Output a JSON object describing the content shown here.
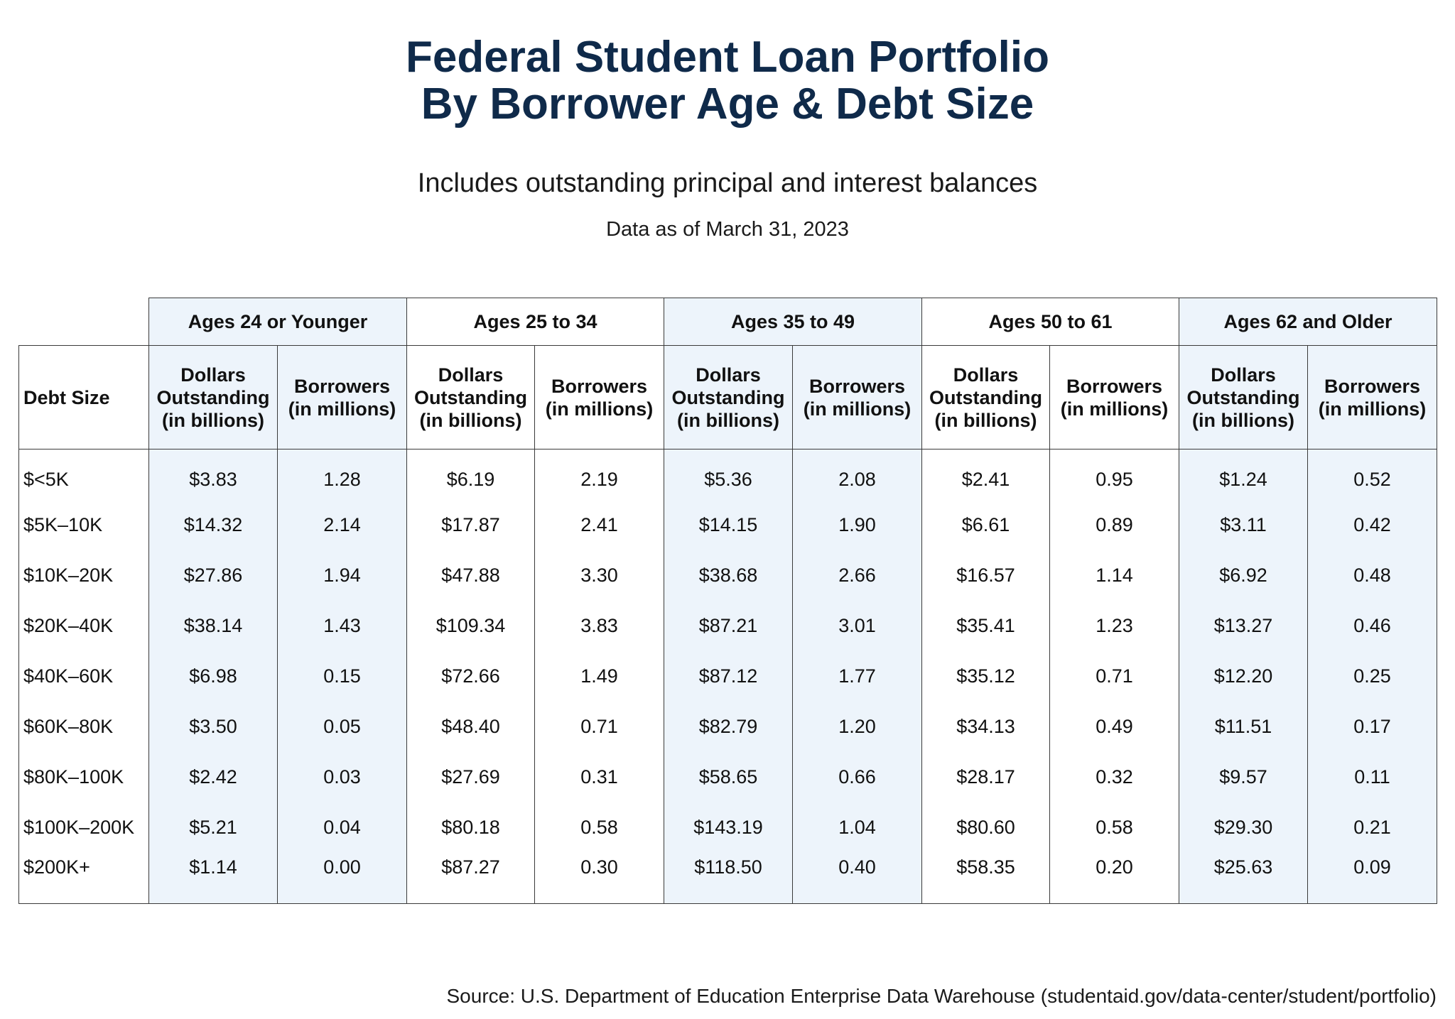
{
  "header": {
    "title_line1": "Federal Student Loan Portfolio",
    "title_line2": "By Borrower Age & Debt Size",
    "subtitle": "Includes outstanding principal and interest balances",
    "date": "Data as of March 31, 2023"
  },
  "table": {
    "row_header_label": "Debt Size",
    "age_groups": [
      {
        "label": "Ages 24 or Younger",
        "shaded": true
      },
      {
        "label": "Ages 25 to 34",
        "shaded": false
      },
      {
        "label": "Ages 35 to 49",
        "shaded": true
      },
      {
        "label": "Ages 50 to 61",
        "shaded": false
      },
      {
        "label": "Ages 62 and Older",
        "shaded": true
      }
    ],
    "sub_headers": {
      "dollars": [
        "Dollars",
        "Outstanding",
        "(in billions)"
      ],
      "borrowers": [
        "Borrowers",
        "(in millions)"
      ]
    },
    "rows": [
      {
        "debt": "$<5K",
        "cells": [
          "$3.83",
          "1.28",
          "$6.19",
          "2.19",
          "$5.36",
          "2.08",
          "$2.41",
          "0.95",
          "$1.24",
          "0.52"
        ]
      },
      {
        "debt": "$5K–10K",
        "cells": [
          "$14.32",
          "2.14",
          "$17.87",
          "2.41",
          "$14.15",
          "1.90",
          "$6.61",
          "0.89",
          "$3.11",
          "0.42"
        ]
      },
      {
        "debt": "$10K–20K",
        "cells": [
          "$27.86",
          "1.94",
          "$47.88",
          "3.30",
          "$38.68",
          "2.66",
          "$16.57",
          "1.14",
          "$6.92",
          "0.48"
        ]
      },
      {
        "debt": "$20K–40K",
        "cells": [
          "$38.14",
          "1.43",
          "$109.34",
          "3.83",
          "$87.21",
          "3.01",
          "$35.41",
          "1.23",
          "$13.27",
          "0.46"
        ]
      },
      {
        "debt": "$40K–60K",
        "cells": [
          "$6.98",
          "0.15",
          "$72.66",
          "1.49",
          "$87.12",
          "1.77",
          "$35.12",
          "0.71",
          "$12.20",
          "0.25"
        ]
      },
      {
        "debt": "$60K–80K",
        "cells": [
          "$3.50",
          "0.05",
          "$48.40",
          "0.71",
          "$82.79",
          "1.20",
          "$34.13",
          "0.49",
          "$11.51",
          "0.17"
        ]
      },
      {
        "debt": "$80K–100K",
        "cells": [
          "$2.42",
          "0.03",
          "$27.69",
          "0.31",
          "$58.65",
          "0.66",
          "$28.17",
          "0.32",
          "$9.57",
          "0.11"
        ]
      },
      {
        "debt": "$100K–200K",
        "cells": [
          "$5.21",
          "0.04",
          "$80.18",
          "0.58",
          "$143.19",
          "1.04",
          "$80.60",
          "0.58",
          "$29.30",
          "0.21"
        ]
      },
      {
        "debt": "$200K+",
        "cells": [
          "$1.14",
          "0.00",
          "$87.27",
          "0.30",
          "$118.50",
          "0.40",
          "$58.35",
          "0.20",
          "$25.63",
          "0.09"
        ]
      }
    ]
  },
  "footer": {
    "source": "Source: U.S. Department of Education Enterprise Data Warehouse (studentaid.gov/data-center/student/portfolio)"
  },
  "colors": {
    "title": "#0f2a4a",
    "shade": "#edf4fb",
    "border": "#3a3a3a"
  },
  "chart_data": {
    "type": "table",
    "title": "Federal Student Loan Portfolio By Borrower Age & Debt Size",
    "subtitle": "Includes outstanding principal and interest balances",
    "note": "Data as of March 31, 2023",
    "row_label": "Debt Size",
    "categories": [
      "$<5K",
      "$5K–10K",
      "$10K–20K",
      "$20K–40K",
      "$40K–60K",
      "$60K–80K",
      "$80K–100K",
      "$100K–200K",
      "$200K+"
    ],
    "series": [
      {
        "name": "Ages 24 or Younger - Dollars Outstanding (in billions)",
        "values": [
          3.83,
          14.32,
          27.86,
          38.14,
          6.98,
          3.5,
          2.42,
          5.21,
          1.14
        ]
      },
      {
        "name": "Ages 24 or Younger - Borrowers (in millions)",
        "values": [
          1.28,
          2.14,
          1.94,
          1.43,
          0.15,
          0.05,
          0.03,
          0.04,
          0.0
        ]
      },
      {
        "name": "Ages 25 to 34 - Dollars Outstanding (in billions)",
        "values": [
          6.19,
          17.87,
          47.88,
          109.34,
          72.66,
          48.4,
          27.69,
          80.18,
          87.27
        ]
      },
      {
        "name": "Ages 25 to 34 - Borrowers (in millions)",
        "values": [
          2.19,
          2.41,
          3.3,
          3.83,
          1.49,
          0.71,
          0.31,
          0.58,
          0.3
        ]
      },
      {
        "name": "Ages 35 to 49 - Dollars Outstanding (in billions)",
        "values": [
          5.36,
          14.15,
          38.68,
          87.21,
          87.12,
          82.79,
          58.65,
          143.19,
          118.5
        ]
      },
      {
        "name": "Ages 35 to 49 - Borrowers (in millions)",
        "values": [
          2.08,
          1.9,
          2.66,
          3.01,
          1.77,
          1.2,
          0.66,
          1.04,
          0.4
        ]
      },
      {
        "name": "Ages 50 to 61 - Dollars Outstanding (in billions)",
        "values": [
          2.41,
          6.61,
          16.57,
          35.41,
          35.12,
          34.13,
          28.17,
          80.6,
          58.35
        ]
      },
      {
        "name": "Ages 50 to 61 - Borrowers (in millions)",
        "values": [
          0.95,
          0.89,
          1.14,
          1.23,
          0.71,
          0.49,
          0.32,
          0.58,
          0.2
        ]
      },
      {
        "name": "Ages 62 and Older - Dollars Outstanding (in billions)",
        "values": [
          1.24,
          3.11,
          6.92,
          13.27,
          12.2,
          11.51,
          9.57,
          29.3,
          25.63
        ]
      },
      {
        "name": "Ages 62 and Older - Borrowers (in millions)",
        "values": [
          0.52,
          0.42,
          0.48,
          0.46,
          0.25,
          0.17,
          0.11,
          0.21,
          0.09
        ]
      }
    ],
    "source": "Source: U.S. Department of Education Enterprise Data Warehouse (studentaid.gov/data-center/student/portfolio)"
  }
}
